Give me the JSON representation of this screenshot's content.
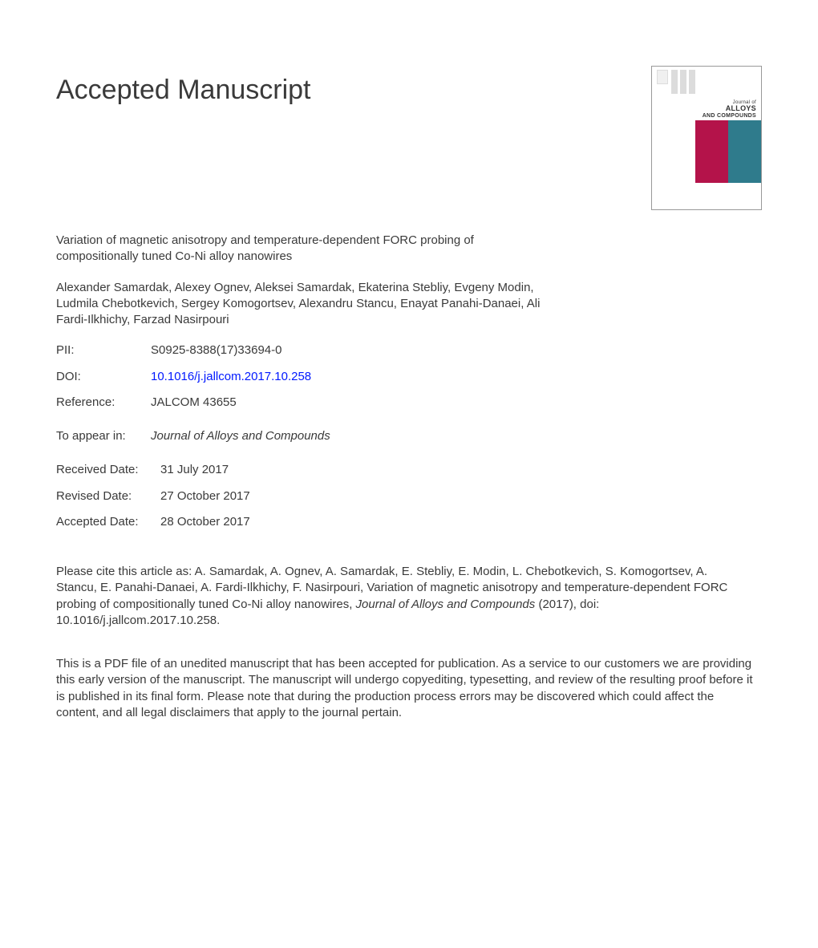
{
  "page": {
    "heading": "Accepted Manuscript",
    "title": "Variation of magnetic anisotropy and temperature-dependent FORC probing of compositionally tuned Co-Ni alloy nanowires",
    "authors": "Alexander Samardak, Alexey Ognev, Aleksei Samardak, Ekaterina Stebliy, Evgeny Modin, Ludmila Chebotkevich, Sergey Komogortsev, Alexandru Stancu, Enayat Panahi-Danaei, Ali Fardi-Ilkhichy, Farzad Nasirpouri",
    "meta": {
      "pii_label": "PII:",
      "pii_value": "S0925-8388(17)33694-0",
      "doi_label": "DOI:",
      "doi_value": "10.1016/j.jallcom.2017.10.258",
      "ref_label": "Reference:",
      "ref_value": "JALCOM 43655"
    },
    "appear": {
      "label": "To appear in:",
      "value": "Journal of Alloys and Compounds"
    },
    "dates": {
      "received_label": "Received Date:",
      "received_value": "31 July 2017",
      "revised_label": "Revised Date:",
      "revised_value": "27 October 2017",
      "accepted_label": "Accepted Date:",
      "accepted_value": "28 October 2017"
    },
    "citation": {
      "prefix": "Please cite this article as: A. Samardak, A. Ognev, A. Samardak, E. Stebliy, E. Modin, L. Chebotkevich, S. Komogortsev, A. Stancu, E. Panahi-Danaei, A. Fardi-Ilkhichy, F. Nasirpouri, Variation of magnetic anisotropy and temperature-dependent FORC probing of compositionally tuned Co-Ni alloy nanowires, ",
      "journal": "Journal of Alloys and Compounds",
      "suffix": " (2017), doi: 10.1016/j.jallcom.2017.10.258."
    },
    "disclaimer": "This is a PDF file of an unedited manuscript that has been accepted for publication. As a service to our customers we are providing this early version of the manuscript. The manuscript will undergo copyediting, typesetting, and review of the resulting proof before it is published in its final form. Please note that during the production process errors may be discovered which could affect the content, and all legal disclaimers that apply to the journal pertain."
  },
  "cover": {
    "journal_small": "Journal of",
    "journal_big": "ALLOYS",
    "journal_and": "AND COMPOUNDS",
    "colors": {
      "left_panel": "#ffffff",
      "center_panel": "#b4134a",
      "right_panel": "#2f7b8c",
      "bar": "#dcdcdc",
      "border": "#999999"
    }
  }
}
